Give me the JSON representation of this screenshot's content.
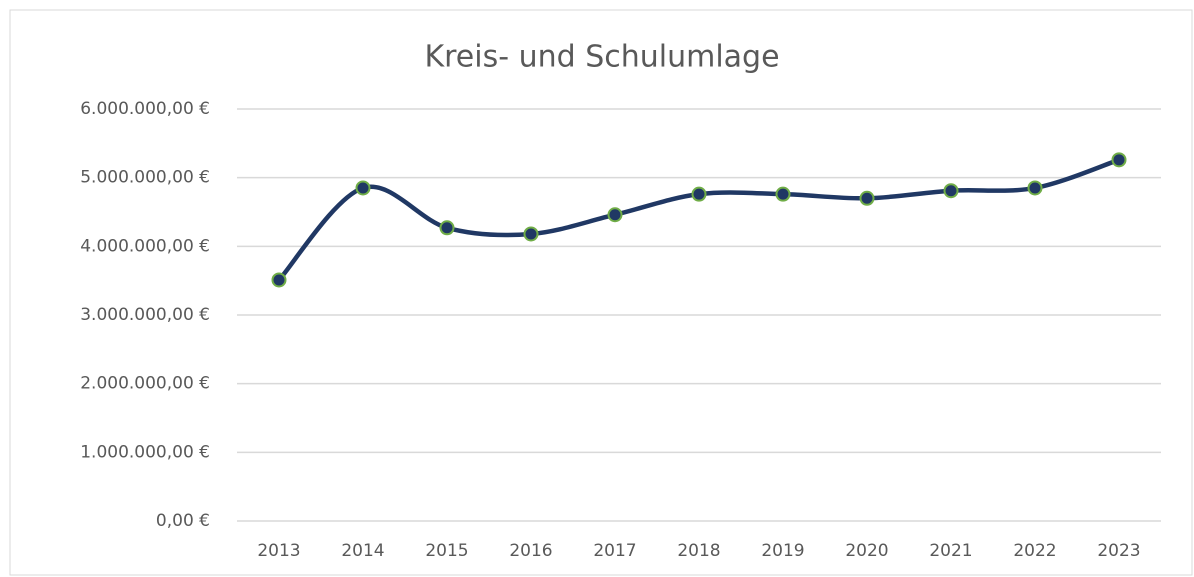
{
  "chart_data": {
    "type": "line",
    "title": "Kreis- und Schulumlage",
    "categories": [
      "2013",
      "2014",
      "2015",
      "2016",
      "2017",
      "2018",
      "2019",
      "2020",
      "2021",
      "2022",
      "2023"
    ],
    "series": [
      {
        "name": "Kreis- und Schulumlage",
        "color": "#203864",
        "marker_color": "#70ad47",
        "values": [
          3510000,
          4850000,
          4270000,
          4180000,
          4460000,
          4760000,
          4760000,
          4700000,
          4810000,
          4850000,
          5260000
        ]
      }
    ],
    "ylim": [
      0,
      6000000
    ],
    "yticks": [
      {
        "value": 0,
        "label": "0,00 €"
      },
      {
        "value": 1000000,
        "label": "1.000.000,00 €"
      },
      {
        "value": 2000000,
        "label": "2.000.000,00 €"
      },
      {
        "value": 3000000,
        "label": "3.000.000,00 €"
      },
      {
        "value": 4000000,
        "label": "4.000.000,00 €"
      },
      {
        "value": 5000000,
        "label": "5.000.000,00 €"
      },
      {
        "value": 6000000,
        "label": "6.000.000,00 €"
      }
    ],
    "grid": true,
    "smooth": true
  }
}
